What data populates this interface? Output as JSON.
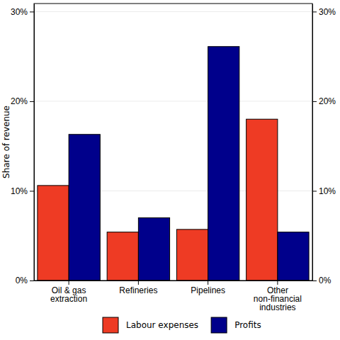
{
  "chart_data": {
    "type": "bar",
    "y_label": "Share of revenue",
    "categories": [
      "Oil & gas\nextraction",
      "Refineries",
      "Pipelines",
      "Other\nnon-financial\nindustries"
    ],
    "series": [
      {
        "name": "Labour expenses",
        "color": "#ee3b24",
        "values": [
          10.6,
          5.4,
          5.7,
          18.0
        ]
      },
      {
        "name": "Profits",
        "color": "#00008b",
        "values": [
          16.3,
          7.0,
          26.1,
          5.4
        ]
      }
    ],
    "ylim": [
      0,
      30.9
    ],
    "yticks": [
      {
        "value": 0,
        "label": "0%"
      },
      {
        "value": 10,
        "label": "10%"
      },
      {
        "value": 20,
        "label": "20%"
      },
      {
        "value": 30,
        "label": "30%"
      }
    ],
    "y2lim": [
      0,
      30.9
    ],
    "y2ticks": [
      {
        "value": 0,
        "label": "0%"
      },
      {
        "value": 10,
        "label": "10%"
      },
      {
        "value": 20,
        "label": "20%"
      },
      {
        "value": 30,
        "label": "30%"
      }
    ],
    "grid": true,
    "legend": "bottom"
  }
}
